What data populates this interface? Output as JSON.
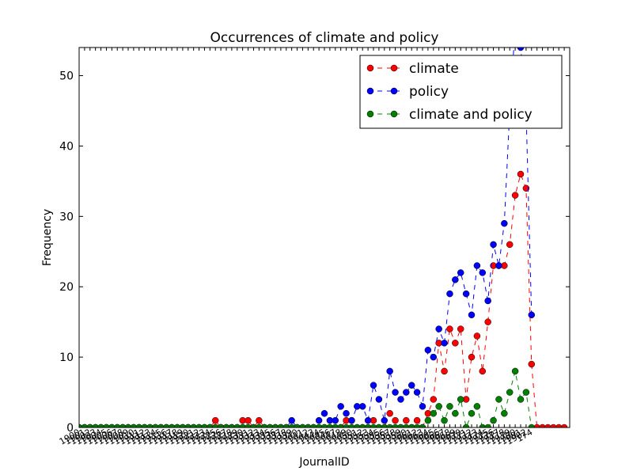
{
  "chart_data": {
    "type": "line",
    "title": "Occurrences of climate and policy",
    "xlabel": "JournalID",
    "ylabel": "Frequency",
    "xlim": [
      0,
      90
    ],
    "ylim": [
      0,
      54
    ],
    "y_ticks": [
      0,
      10,
      20,
      30,
      40,
      50
    ],
    "last_tick_label": "174",
    "grid": false,
    "legend_position": "top-right",
    "series": [
      {
        "name": "climate",
        "color": "#ff0000",
        "x": [
          0,
          1,
          2,
          3,
          4,
          5,
          6,
          7,
          8,
          9,
          10,
          11,
          12,
          13,
          14,
          15,
          16,
          17,
          18,
          19,
          20,
          21,
          22,
          23,
          24,
          25,
          26,
          27,
          28,
          29,
          30,
          31,
          32,
          33,
          34,
          35,
          36,
          37,
          38,
          39,
          40,
          41,
          42,
          43,
          44,
          45,
          46,
          47,
          48,
          49,
          50,
          51,
          52,
          53,
          54,
          55,
          56,
          57,
          58,
          59,
          60,
          61,
          62,
          63,
          64,
          65,
          66,
          67,
          68,
          69,
          70,
          71,
          72,
          73,
          74,
          75,
          76,
          77,
          78,
          79,
          80,
          81,
          82,
          83,
          84,
          85,
          86,
          87,
          88,
          89
        ],
        "values": [
          0,
          0,
          0,
          0,
          0,
          0,
          0,
          0,
          0,
          0,
          0,
          0,
          0,
          0,
          0,
          0,
          0,
          0,
          0,
          0,
          0,
          0,
          0,
          0,
          0,
          1,
          0,
          0,
          0,
          0,
          1,
          1,
          0,
          1,
          0,
          0,
          0,
          0,
          0,
          0,
          0,
          0,
          0,
          0,
          0,
          0,
          0,
          0,
          0,
          1,
          1,
          0,
          0,
          0,
          1,
          0,
          0,
          2,
          1,
          0,
          1,
          0,
          1,
          0,
          2,
          4,
          12,
          8,
          14,
          12,
          14,
          4,
          10,
          13,
          8,
          15,
          23,
          23,
          23,
          26,
          33,
          36,
          34,
          9,
          0,
          0,
          0,
          0,
          0,
          0
        ]
      },
      {
        "name": "policy",
        "color": "#0000ff",
        "x": [
          0,
          1,
          2,
          3,
          4,
          5,
          6,
          7,
          8,
          9,
          10,
          11,
          12,
          13,
          14,
          15,
          16,
          17,
          18,
          19,
          20,
          21,
          22,
          23,
          24,
          25,
          26,
          27,
          28,
          29,
          30,
          31,
          32,
          33,
          34,
          35,
          36,
          37,
          38,
          39,
          40,
          41,
          42,
          43,
          44,
          45,
          46,
          47,
          48,
          49,
          50,
          51,
          52,
          53,
          54,
          55,
          56,
          57,
          58,
          59,
          60,
          61,
          62,
          63,
          64,
          65,
          66,
          67,
          68,
          69,
          70,
          71,
          72,
          73,
          74,
          75,
          76,
          77,
          78,
          79,
          80,
          81,
          82,
          83
        ],
        "values": [
          0,
          0,
          0,
          0,
          0,
          0,
          0,
          0,
          0,
          0,
          0,
          0,
          0,
          0,
          0,
          0,
          0,
          0,
          0,
          0,
          0,
          0,
          0,
          0,
          0,
          0,
          0,
          0,
          0,
          0,
          0,
          0,
          0,
          0,
          0,
          0,
          0,
          0,
          0,
          1,
          0,
          0,
          0,
          0,
          1,
          2,
          1,
          1,
          3,
          2,
          1,
          3,
          3,
          1,
          6,
          4,
          1,
          8,
          5,
          4,
          5,
          6,
          5,
          3,
          11,
          10,
          14,
          12,
          19,
          21,
          22,
          19,
          16,
          23,
          22,
          18,
          26,
          23,
          29,
          45,
          57,
          54,
          45,
          16
        ]
      },
      {
        "name": "climate and policy",
        "color": "#008000",
        "x": [
          0,
          1,
          2,
          3,
          4,
          5,
          6,
          7,
          8,
          9,
          10,
          11,
          12,
          13,
          14,
          15,
          16,
          17,
          18,
          19,
          20,
          21,
          22,
          23,
          24,
          25,
          26,
          27,
          28,
          29,
          30,
          31,
          32,
          33,
          34,
          35,
          36,
          37,
          38,
          39,
          40,
          41,
          42,
          43,
          44,
          45,
          46,
          47,
          48,
          49,
          50,
          51,
          52,
          53,
          54,
          55,
          56,
          57,
          58,
          59,
          60,
          61,
          62,
          63,
          64,
          65,
          66,
          67,
          68,
          69,
          70,
          71,
          72,
          73,
          74,
          75,
          76,
          77,
          78,
          79,
          80,
          81,
          82,
          83
        ],
        "values": [
          0,
          0,
          0,
          0,
          0,
          0,
          0,
          0,
          0,
          0,
          0,
          0,
          0,
          0,
          0,
          0,
          0,
          0,
          0,
          0,
          0,
          0,
          0,
          0,
          0,
          0,
          0,
          0,
          0,
          0,
          0,
          0,
          0,
          0,
          0,
          0,
          0,
          0,
          0,
          0,
          0,
          0,
          0,
          0,
          0,
          0,
          0,
          0,
          0,
          0,
          0,
          0,
          0,
          0,
          0,
          0,
          0,
          0,
          0,
          0,
          0,
          0,
          0,
          0,
          1,
          2,
          3,
          1,
          3,
          2,
          4,
          0,
          2,
          3,
          0,
          0,
          1,
          4,
          2,
          5,
          8,
          4,
          5,
          0
        ]
      }
    ]
  }
}
